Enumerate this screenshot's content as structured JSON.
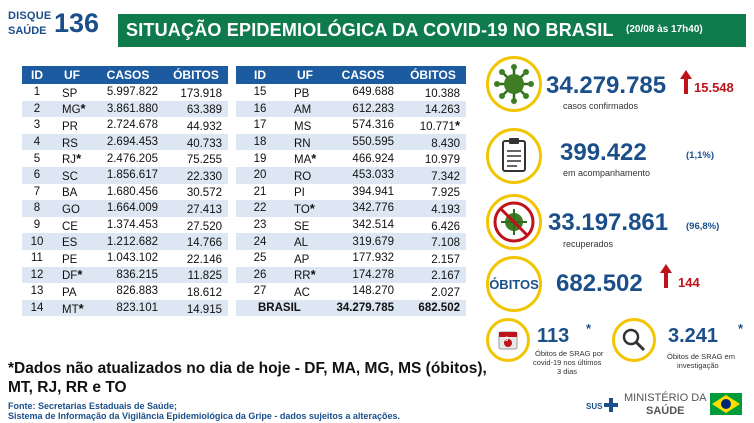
{
  "logo": {
    "top": "DISQUE",
    "bottom": "SAÚDE",
    "number": "136"
  },
  "header": {
    "title": "SITUAÇÃO EPIDEMIOLÓGICA DA COVID-19 NO BRASIL",
    "date": "(20/08 às 17h40)"
  },
  "table_headers": {
    "id": "ID",
    "uf": "UF",
    "casos": "CASOS",
    "obitos": "ÓBITOS"
  },
  "left_rows": [
    {
      "id": "1",
      "uf": "SP",
      "star": "",
      "casos": "5.997.822",
      "obitos": "173.918",
      "ostar": ""
    },
    {
      "id": "2",
      "uf": "MG",
      "star": "*",
      "casos": "3.861.880",
      "obitos": "63.389",
      "ostar": ""
    },
    {
      "id": "3",
      "uf": "PR",
      "star": "",
      "casos": "2.724.678",
      "obitos": "44.932",
      "ostar": ""
    },
    {
      "id": "4",
      "uf": "RS",
      "star": "",
      "casos": "2.694.453",
      "obitos": "40.733",
      "ostar": ""
    },
    {
      "id": "5",
      "uf": "RJ",
      "star": "*",
      "casos": "2.476.205",
      "obitos": "75.255",
      "ostar": ""
    },
    {
      "id": "6",
      "uf": "SC",
      "star": "",
      "casos": "1.856.617",
      "obitos": "22.330",
      "ostar": ""
    },
    {
      "id": "7",
      "uf": "BA",
      "star": "",
      "casos": "1.680.456",
      "obitos": "30.572",
      "ostar": ""
    },
    {
      "id": "8",
      "uf": "GO",
      "star": "",
      "casos": "1.664.009",
      "obitos": "27.413",
      "ostar": ""
    },
    {
      "id": "9",
      "uf": "CE",
      "star": "",
      "casos": "1.374.453",
      "obitos": "27.520",
      "ostar": ""
    },
    {
      "id": "10",
      "uf": "ES",
      "star": "",
      "casos": "1.212.682",
      "obitos": "14.766",
      "ostar": ""
    },
    {
      "id": "11",
      "uf": "PE",
      "star": "",
      "casos": "1.043.102",
      "obitos": "22.146",
      "ostar": ""
    },
    {
      "id": "12",
      "uf": "DF",
      "star": "*",
      "casos": "836.215",
      "obitos": "11.825",
      "ostar": ""
    },
    {
      "id": "13",
      "uf": "PA",
      "star": "",
      "casos": "826.883",
      "obitos": "18.612",
      "ostar": ""
    },
    {
      "id": "14",
      "uf": "MT",
      "star": "*",
      "casos": "823.101",
      "obitos": "14.915",
      "ostar": ""
    }
  ],
  "right_rows": [
    {
      "id": "15",
      "uf": "PB",
      "star": "",
      "casos": "649.688",
      "obitos": "10.388",
      "ostar": ""
    },
    {
      "id": "16",
      "uf": "AM",
      "star": "",
      "casos": "612.283",
      "obitos": "14.263",
      "ostar": ""
    },
    {
      "id": "17",
      "uf": "MS",
      "star": "",
      "casos": "574.316",
      "obitos": "10.771",
      "ostar": "*"
    },
    {
      "id": "18",
      "uf": "RN",
      "star": "",
      "casos": "550.595",
      "obitos": "8.430",
      "ostar": ""
    },
    {
      "id": "19",
      "uf": "MA",
      "star": "*",
      "casos": "466.924",
      "obitos": "10.979",
      "ostar": ""
    },
    {
      "id": "20",
      "uf": "RO",
      "star": "",
      "casos": "453.033",
      "obitos": "7.342",
      "ostar": ""
    },
    {
      "id": "21",
      "uf": "PI",
      "star": "",
      "casos": "394.941",
      "obitos": "7.925",
      "ostar": ""
    },
    {
      "id": "22",
      "uf": "TO",
      "star": "*",
      "casos": "342.776",
      "obitos": "4.193",
      "ostar": ""
    },
    {
      "id": "23",
      "uf": "SE",
      "star": "",
      "casos": "342.514",
      "obitos": "6.426",
      "ostar": ""
    },
    {
      "id": "24",
      "uf": "AL",
      "star": "",
      "casos": "319.679",
      "obitos": "7.108",
      "ostar": ""
    },
    {
      "id": "25",
      "uf": "AP",
      "star": "",
      "casos": "177.932",
      "obitos": "2.157",
      "ostar": ""
    },
    {
      "id": "26",
      "uf": "RR",
      "star": "*",
      "casos": "174.278",
      "obitos": "2.167",
      "ostar": ""
    },
    {
      "id": "27",
      "uf": "AC",
      "star": "",
      "casos": "148.270",
      "obitos": "2.027",
      "ostar": ""
    }
  ],
  "total": {
    "label": "BRASIL",
    "casos": "34.279.785",
    "obitos": "682.502"
  },
  "stats": {
    "confirmed": {
      "value": "34.279.785",
      "label": "casos confirmados",
      "increase": "15.548"
    },
    "monitoring": {
      "value": "399.422",
      "label": "em acompanhamento",
      "pct": "(1,1%)"
    },
    "recovered": {
      "value": "33.197.861",
      "label": "recuperados",
      "pct": "(96,8%)"
    },
    "deaths": {
      "title": "ÓBITOS",
      "value": "682.502",
      "increase": "144"
    },
    "srag_recent": {
      "value": "113",
      "star": "*",
      "label_1": "Óbitos de SRAG por",
      "label_2": "covid-19 nos últimos",
      "label_3": "3 dias",
      "icon_num": "3"
    },
    "srag_investigation": {
      "value": "3.241",
      "star": "*",
      "label_1": "Óbitos de SRAG em",
      "label_2": "investigação"
    }
  },
  "footnote": {
    "line1": "*Dados não atualizados no dia de hoje - DF, MA, MG, MS (óbitos),",
    "line2": "MT, RJ, RR e TO"
  },
  "source": {
    "line1": "Fonte: Secretarias Estaduais de Saúde;",
    "line2": "Sistema de Informação da Vigilância Epidemiológica da Gripe - dados sujeitos a alterações."
  },
  "footer": {
    "sus": "SUS",
    "ministry_1": "MINISTÉRIO DA",
    "ministry_2": "SAÚDE"
  },
  "colors": {
    "green": "#0f7a4c",
    "blue": "#1b4f8a",
    "yellow": "#f2c500",
    "red": "#c0121b"
  }
}
